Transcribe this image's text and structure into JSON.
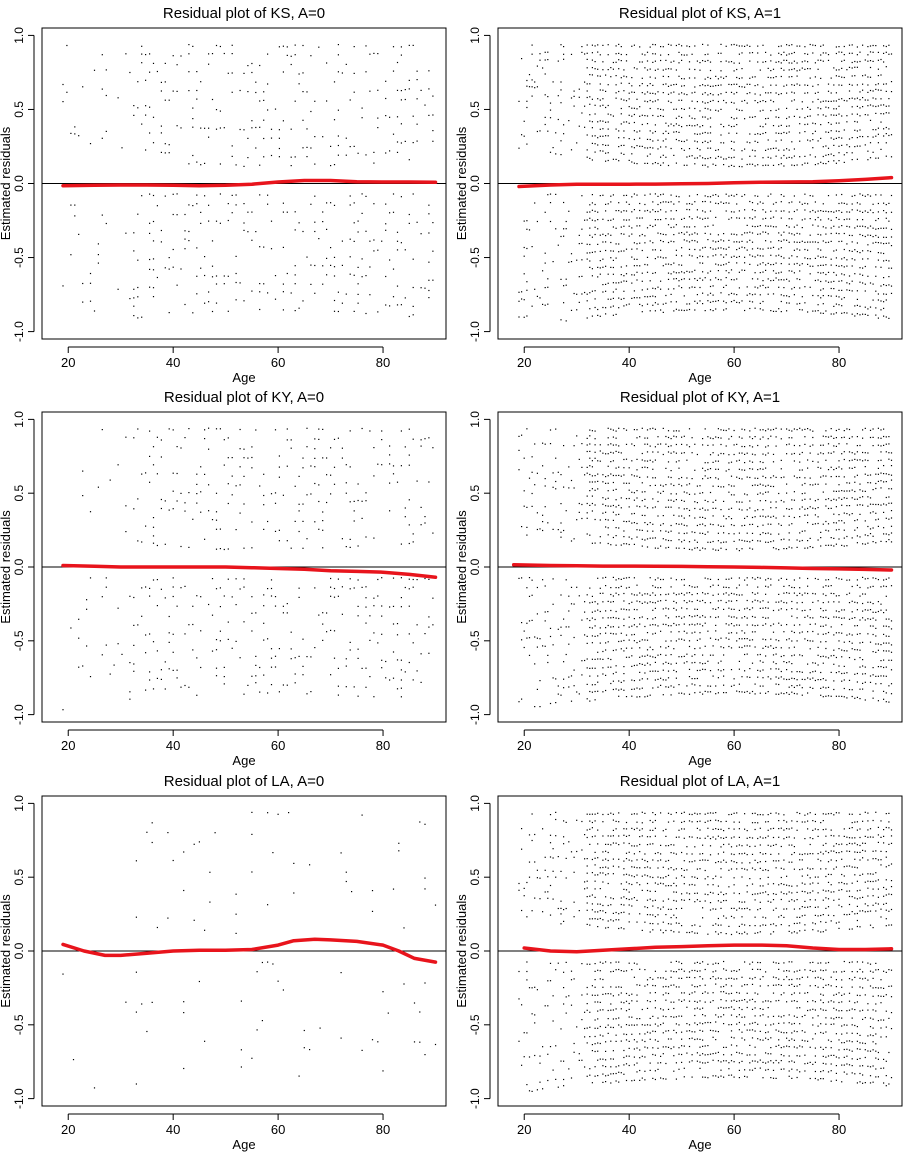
{
  "chart_data": [
    {
      "type": "scatter",
      "title": "Residual plot of KS, A=0",
      "xlabel": "Age",
      "ylabel": "Estimated residuals",
      "xlim": [
        15,
        92
      ],
      "ylim": [
        -1.05,
        1.05
      ],
      "xticks": [
        "20",
        "40",
        "60",
        "80"
      ],
      "yticks": [
        "-1.0",
        "-0.5",
        "0.0",
        "0.5",
        "1.0"
      ],
      "reference_line_y": 0,
      "density": "moderate",
      "smooth_color": "#e8141c",
      "smooth": {
        "x": [
          19,
          25,
          30,
          35,
          40,
          45,
          50,
          55,
          60,
          65,
          70,
          75,
          80,
          85,
          90
        ],
        "y": [
          -0.015,
          -0.012,
          -0.01,
          -0.01,
          -0.012,
          -0.015,
          -0.012,
          -0.005,
          0.01,
          0.02,
          0.02,
          0.012,
          0.01,
          0.01,
          0.008
        ]
      }
    },
    {
      "type": "scatter",
      "title": "Residual plot of KS, A=1",
      "xlabel": "Age",
      "ylabel": "Estimated residuals",
      "xlim": [
        15,
        92
      ],
      "ylim": [
        -1.05,
        1.05
      ],
      "xticks": [
        "20",
        "40",
        "60",
        "80"
      ],
      "yticks": [
        "-1.0",
        "-0.5",
        "0.0",
        "0.5",
        "1.0"
      ],
      "reference_line_y": 0,
      "density": "dense",
      "smooth_color": "#e8141c",
      "smooth": {
        "x": [
          19,
          25,
          30,
          35,
          40,
          45,
          50,
          55,
          60,
          65,
          70,
          75,
          80,
          85,
          90
        ],
        "y": [
          -0.02,
          -0.01,
          -0.005,
          -0.005,
          -0.005,
          -0.004,
          -0.002,
          0.0,
          0.005,
          0.008,
          0.01,
          0.012,
          0.018,
          0.028,
          0.04
        ]
      }
    },
    {
      "type": "scatter",
      "title": "Residual plot of KY, A=0",
      "xlabel": "Age",
      "ylabel": "Estimated residuals",
      "xlim": [
        15,
        92
      ],
      "ylim": [
        -1.05,
        1.05
      ],
      "xticks": [
        "20",
        "40",
        "60",
        "80"
      ],
      "yticks": [
        "-1.0",
        "-0.5",
        "0.0",
        "0.5",
        "1.0"
      ],
      "reference_line_y": 0,
      "density": "moderate",
      "smooth_color": "#e8141c",
      "smooth": {
        "x": [
          19,
          25,
          30,
          35,
          40,
          45,
          50,
          55,
          60,
          65,
          70,
          75,
          80,
          85,
          90
        ],
        "y": [
          0.01,
          0.005,
          0.0,
          0.0,
          0.0,
          0.0,
          0.0,
          -0.005,
          -0.01,
          -0.015,
          -0.025,
          -0.03,
          -0.035,
          -0.05,
          -0.07
        ]
      }
    },
    {
      "type": "scatter",
      "title": "Residual plot of KY, A=1",
      "xlabel": "Age",
      "ylabel": "Estimated residuals",
      "xlim": [
        15,
        92
      ],
      "ylim": [
        -1.05,
        1.05
      ],
      "xticks": [
        "20",
        "40",
        "60",
        "80"
      ],
      "yticks": [
        "-1.0",
        "-0.5",
        "0.0",
        "0.5",
        "1.0"
      ],
      "reference_line_y": 0,
      "density": "dense",
      "smooth_color": "#e8141c",
      "smooth": {
        "x": [
          18,
          25,
          30,
          35,
          40,
          45,
          50,
          55,
          60,
          65,
          70,
          75,
          80,
          85,
          90
        ],
        "y": [
          0.015,
          0.01,
          0.008,
          0.006,
          0.006,
          0.005,
          0.004,
          0.002,
          0.0,
          -0.003,
          -0.006,
          -0.01,
          -0.013,
          -0.016,
          -0.02
        ]
      }
    },
    {
      "type": "scatter",
      "title": "Residual plot of LA, A=0",
      "xlabel": "Age",
      "ylabel": "Estimated residuals",
      "xlim": [
        15,
        92
      ],
      "ylim": [
        -1.05,
        1.05
      ],
      "xticks": [
        "20",
        "40",
        "60",
        "80"
      ],
      "yticks": [
        "-1.0",
        "-0.5",
        "0.0",
        "0.5",
        "1.0"
      ],
      "reference_line_y": 0,
      "density": "sparse",
      "smooth_color": "#e8141c",
      "smooth": {
        "x": [
          19,
          23,
          27,
          30,
          35,
          40,
          45,
          50,
          55,
          60,
          63,
          67,
          70,
          75,
          80,
          83,
          86,
          90
        ],
        "y": [
          0.045,
          0.0,
          -0.03,
          -0.03,
          -0.015,
          0.0,
          0.005,
          0.005,
          0.01,
          0.04,
          0.07,
          0.08,
          0.075,
          0.065,
          0.04,
          0.0,
          -0.05,
          -0.075
        ]
      }
    },
    {
      "type": "scatter",
      "title": "Residual plot of LA, A=1",
      "xlabel": "Age",
      "ylabel": "Estimated residuals",
      "xlim": [
        15,
        92
      ],
      "ylim": [
        -1.05,
        1.05
      ],
      "xticks": [
        "20",
        "40",
        "60",
        "80"
      ],
      "yticks": [
        "-1.0",
        "-0.5",
        "0.0",
        "0.5",
        "1.0"
      ],
      "reference_line_y": 0,
      "density": "dense",
      "smooth_color": "#e8141c",
      "smooth": {
        "x": [
          20,
          25,
          30,
          35,
          40,
          45,
          50,
          55,
          60,
          65,
          70,
          75,
          80,
          85,
          90
        ],
        "y": [
          0.02,
          0.0,
          -0.005,
          0.005,
          0.015,
          0.025,
          0.03,
          0.035,
          0.04,
          0.04,
          0.035,
          0.02,
          0.01,
          0.01,
          0.015
        ]
      }
    }
  ]
}
